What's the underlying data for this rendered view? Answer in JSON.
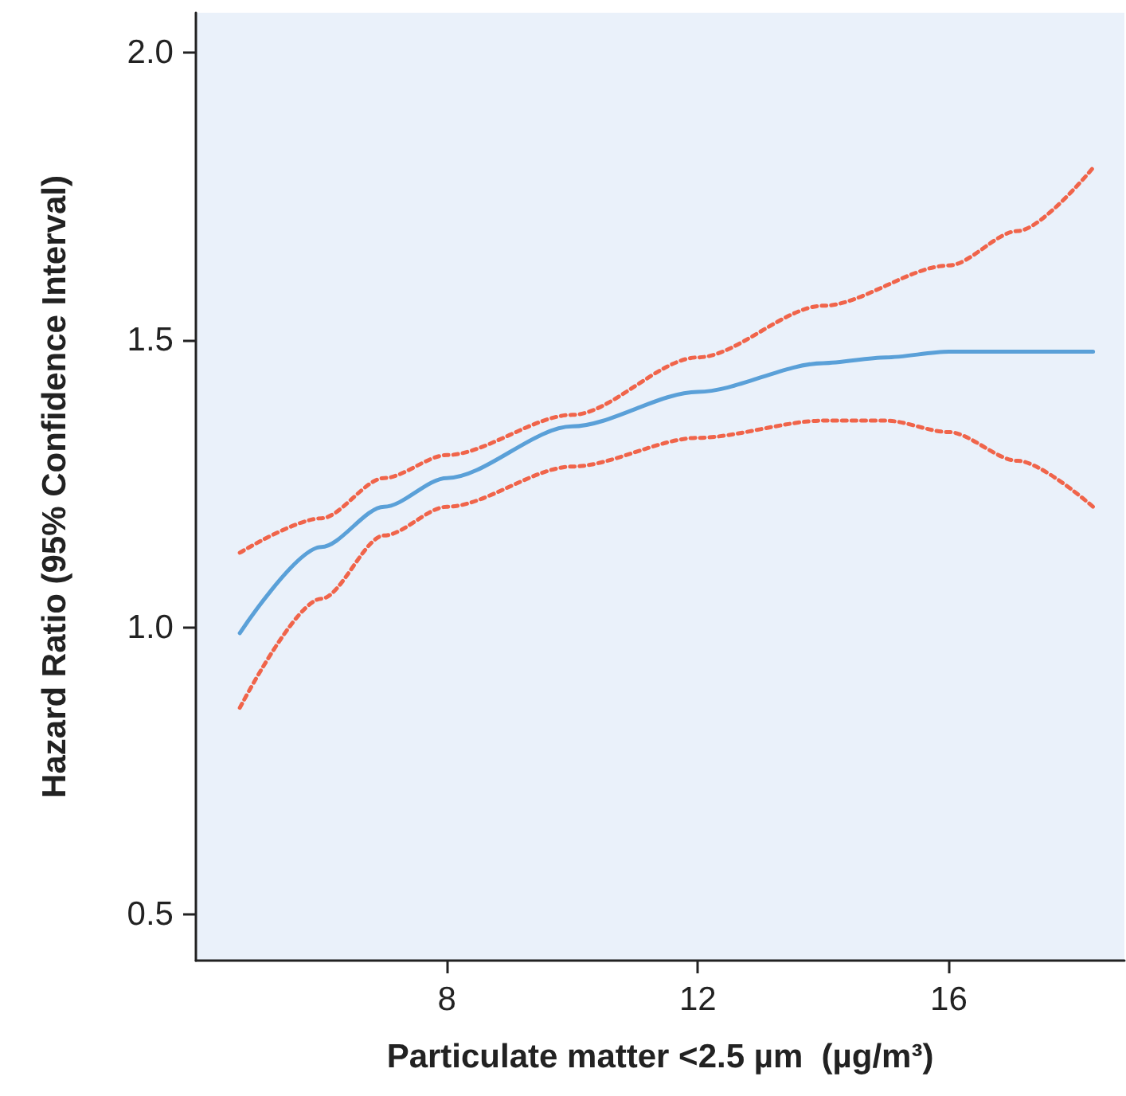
{
  "chart_data": {
    "type": "line",
    "xlabel": "Particulate matter <2.5 µm  (µg/m³)",
    "ylabel": "Hazard Ratio (95% Confidence Interval)",
    "xlim": [
      4,
      18.8
    ],
    "xticks": [
      8,
      12,
      16
    ],
    "ylim": [
      0.42,
      2.07
    ],
    "yticks": [
      {
        "value": 0.5,
        "label": "0.5"
      },
      {
        "value": 1,
        "label": "1.0"
      },
      {
        "value": 1.5,
        "label": "1.5"
      },
      {
        "value": 2,
        "label": "2.0"
      }
    ],
    "grid": false,
    "marker": "none",
    "series": [
      {
        "color": "#5aa0d8",
        "line_style": "solid",
        "x": [
          4.7,
          6,
          7,
          8,
          10,
          12,
          14,
          15,
          16,
          18.3
        ],
        "values": [
          0.99,
          1.14,
          1.21,
          1.26,
          1.35,
          1.41,
          1.46,
          1.47,
          1.48,
          1.48
        ]
      },
      {
        "color": "#f0644a",
        "line_style": "dotted",
        "x": [
          4.7,
          6,
          7,
          8,
          10,
          12,
          14,
          16,
          17.1,
          18.3
        ],
        "values": [
          1.13,
          1.19,
          1.26,
          1.3,
          1.37,
          1.47,
          1.56,
          1.63,
          1.69,
          1.8
        ]
      },
      {
        "color": "#f0644a",
        "line_style": "dotted",
        "x": [
          4.7,
          6,
          7,
          8,
          10,
          12,
          14,
          15,
          16,
          17.1,
          18.3
        ],
        "values": [
          0.86,
          1.05,
          1.16,
          1.21,
          1.28,
          1.33,
          1.36,
          1.36,
          1.34,
          1.29,
          1.21
        ]
      }
    ]
  }
}
